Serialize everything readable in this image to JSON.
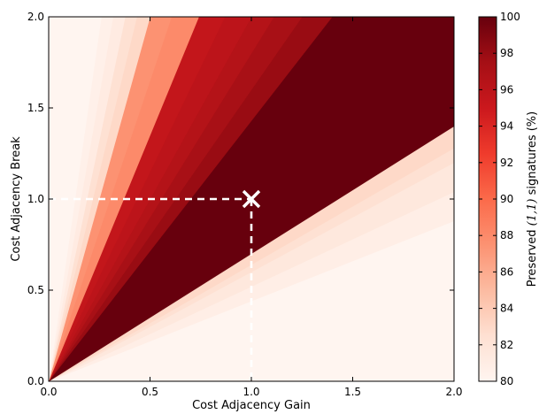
{
  "chart_data": {
    "type": "heatmap",
    "xlabel": "Cost Adjacency Gain",
    "ylabel": "Cost Adjacency Break",
    "xlim": [
      0.0,
      2.0
    ],
    "ylim": [
      0.0,
      2.0
    ],
    "x_ticks": [
      "0.0",
      "0.5",
      "1.0",
      "1.5",
      "2.0"
    ],
    "y_ticks": [
      "0.0",
      "0.5",
      "1.0",
      "1.5",
      "2.0"
    ],
    "colorbar": {
      "label_prefix": "Preserved ",
      "label_math": "(1,1)",
      "label_suffix": " signatures (%)",
      "min": 80,
      "max": 100,
      "ticks": [
        "80",
        "82",
        "84",
        "86",
        "88",
        "90",
        "92",
        "94",
        "96",
        "98",
        "100"
      ],
      "colors": [
        "#fff5f0",
        "#fee0d2",
        "#fcbba1",
        "#fc9272",
        "#fb6a4a",
        "#ef3b2c",
        "#cb181d",
        "#a50f15",
        "#67000d"
      ]
    },
    "grid": false,
    "regions_description": "Wedges from the origin, value by slope y/x",
    "wedges": [
      {
        "slope_from": 0.0,
        "slope_to": 0.44,
        "value": 80.0
      },
      {
        "slope_from": 0.44,
        "slope_to": 0.52,
        "value": 80.8
      },
      {
        "slope_from": 0.52,
        "slope_to": 0.6,
        "value": 81.6
      },
      {
        "slope_from": 0.6,
        "slope_to": 0.64,
        "value": 82.4
      },
      {
        "slope_from": 0.64,
        "slope_to": 0.7,
        "value": 83.0
      },
      {
        "slope_from": 0.7,
        "slope_to": 1.43,
        "value": 100.0
      },
      {
        "slope_from": 1.43,
        "slope_to": 1.6,
        "value": 98.0
      },
      {
        "slope_from": 1.6,
        "slope_to": 1.8,
        "value": 97.3
      },
      {
        "slope_from": 1.8,
        "slope_to": 2.0,
        "value": 96.5
      },
      {
        "slope_from": 2.0,
        "slope_to": 2.3,
        "value": 96.0
      },
      {
        "slope_from": 2.3,
        "slope_to": 2.7,
        "value": 95.5
      },
      {
        "slope_from": 2.7,
        "slope_to": 3.3,
        "value": 88.0
      },
      {
        "slope_from": 3.3,
        "slope_to": 4.0,
        "value": 87.5
      },
      {
        "slope_from": 4.0,
        "slope_to": 4.6,
        "value": 83.0
      },
      {
        "slope_from": 4.6,
        "slope_to": 5.3,
        "value": 82.4
      },
      {
        "slope_from": 5.3,
        "slope_to": 6.3,
        "value": 81.2
      },
      {
        "slope_from": 6.3,
        "slope_to": 7.7,
        "value": 80.6
      },
      {
        "slope_from": 7.7,
        "slope_to": 1000,
        "value": 80.0
      }
    ],
    "marker": {
      "x": 1.0,
      "y": 1.0,
      "symbol": "x",
      "color": "#ffffff"
    },
    "reference_lines": {
      "style": "dashed",
      "color": "#ffffff",
      "at_x": 1.0,
      "at_y": 1.0
    }
  }
}
